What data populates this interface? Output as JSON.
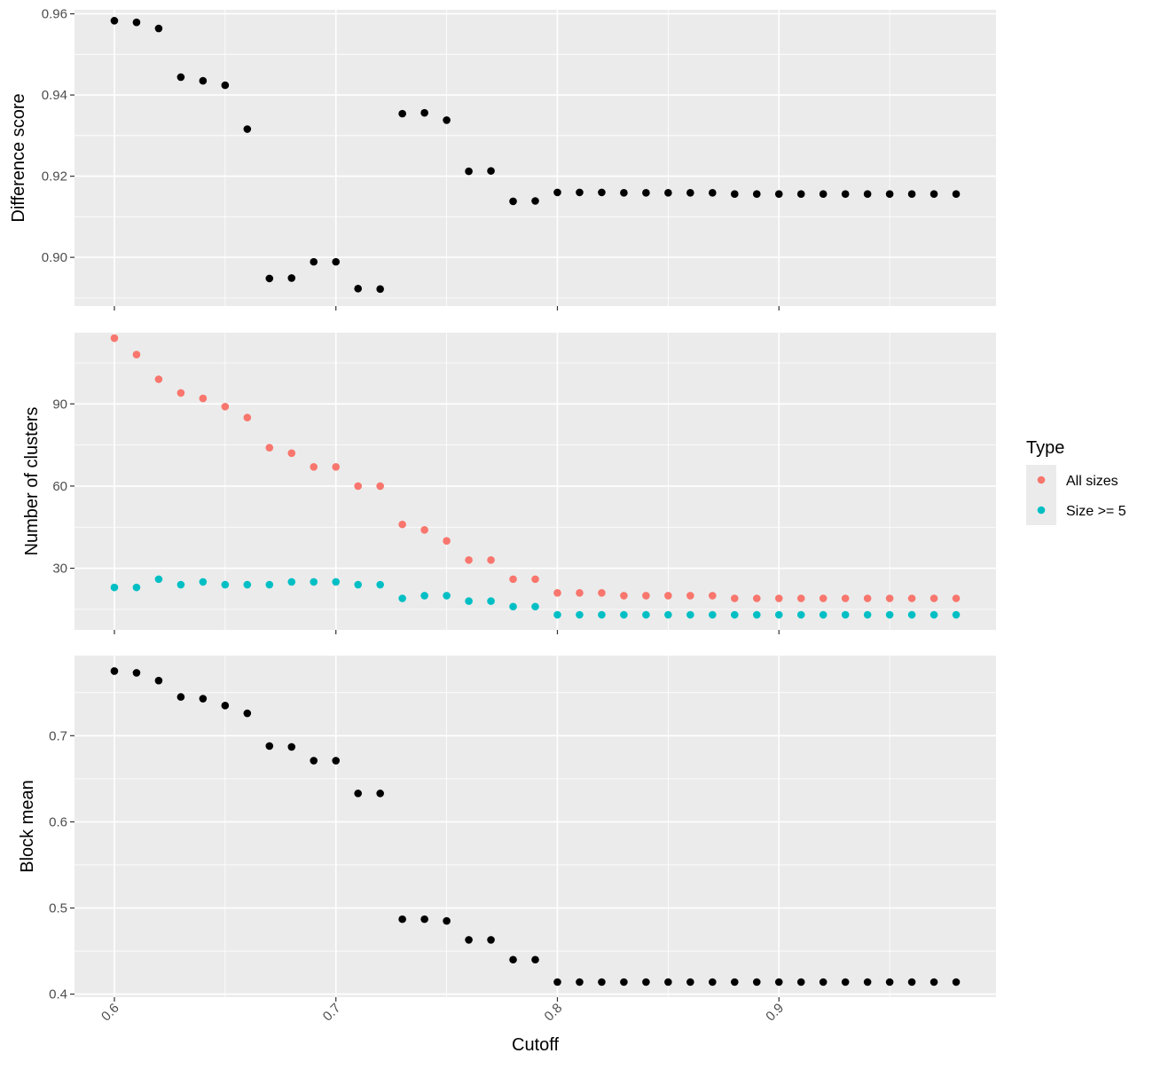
{
  "chart_data": {
    "type": "scatter",
    "x_label": "Cutoff",
    "x_range": [
      0.582,
      0.998
    ],
    "x_ticks": [
      0.6,
      0.7,
      0.8,
      0.9
    ],
    "x_tick_labels": [
      "0.6",
      "0.7",
      "0.8",
      "0.9"
    ],
    "x": [
      0.6,
      0.61,
      0.62,
      0.63,
      0.64,
      0.65,
      0.66,
      0.67,
      0.68,
      0.69,
      0.7,
      0.71,
      0.72,
      0.73,
      0.74,
      0.75,
      0.76,
      0.77,
      0.78,
      0.79,
      0.8,
      0.81,
      0.82,
      0.83,
      0.84,
      0.85,
      0.86,
      0.87,
      0.88,
      0.89,
      0.9,
      0.91,
      0.92,
      0.93,
      0.94,
      0.95,
      0.96,
      0.97,
      0.98
    ],
    "grid": true,
    "legend": {
      "title": "Type",
      "position": "right",
      "entries": [
        {
          "label": "All sizes",
          "color": "#F8766D"
        },
        {
          "label": "Size >= 5",
          "color": "#00BFC4"
        }
      ]
    },
    "panels": [
      {
        "ylabel": "Difference score",
        "ylim": [
          0.888,
          0.961
        ],
        "y_ticks": [
          0.9,
          0.92,
          0.94,
          0.96
        ],
        "y_tick_labels": [
          "0.90",
          "0.92",
          "0.94",
          "0.96"
        ],
        "series": [
          {
            "color": "#000000",
            "values": [
              0.9583,
              0.9579,
              0.9564,
              0.9444,
              0.9435,
              0.9424,
              0.9316,
              0.8948,
              0.8949,
              0.8989,
              0.8989,
              0.8923,
              0.8922,
              0.9354,
              0.9356,
              0.9338,
              0.9212,
              0.9213,
              0.9138,
              0.9139,
              0.916,
              0.916,
              0.916,
              0.9159,
              0.9159,
              0.9159,
              0.9159,
              0.9159,
              0.9156,
              0.9156,
              0.9156,
              0.9156,
              0.9156,
              0.9156,
              0.9156,
              0.9156,
              0.9156,
              0.9156,
              0.9156
            ]
          }
        ]
      },
      {
        "ylabel": "Number of clusters",
        "ylim": [
          7.5,
          116
        ],
        "y_ticks": [
          30,
          60,
          90
        ],
        "y_tick_labels": [
          "30",
          "60",
          "90"
        ],
        "series": [
          {
            "name": "All sizes",
            "color": "#F8766D",
            "values": [
              114,
              108,
              99,
              94,
              92,
              89,
              85,
              74,
              72,
              67,
              67,
              60,
              60,
              46,
              44,
              40,
              33,
              33,
              26,
              26,
              21,
              21,
              21,
              20,
              20,
              20,
              20,
              20,
              19,
              19,
              19,
              19,
              19,
              19,
              19,
              19,
              19,
              19,
              19
            ]
          },
          {
            "name": "Size >= 5",
            "color": "#00BFC4",
            "values": [
              23,
              23,
              26,
              24,
              25,
              24,
              24,
              24,
              25,
              25,
              25,
              24,
              24,
              19,
              20,
              20,
              18,
              18,
              16,
              16,
              13,
              13,
              13,
              13,
              13,
              13,
              13,
              13,
              13,
              13,
              13,
              13,
              13,
              13,
              13,
              13,
              13,
              13,
              13
            ]
          }
        ]
      },
      {
        "ylabel": "Block mean",
        "ylim": [
          0.3965,
          0.793
        ],
        "y_ticks": [
          0.4,
          0.5,
          0.6,
          0.7
        ],
        "y_tick_labels": [
          "0.4",
          "0.5",
          "0.6",
          "0.7"
        ],
        "series": [
          {
            "color": "#000000",
            "values": [
              0.775,
              0.773,
              0.764,
              0.745,
              0.743,
              0.735,
              0.726,
              0.688,
              0.687,
              0.671,
              0.671,
              0.633,
              0.633,
              0.487,
              0.487,
              0.485,
              0.463,
              0.463,
              0.44,
              0.44,
              0.414,
              0.414,
              0.414,
              0.414,
              0.414,
              0.414,
              0.414,
              0.414,
              0.414,
              0.414,
              0.414,
              0.414,
              0.414,
              0.414,
              0.414,
              0.414,
              0.414,
              0.414,
              0.414
            ]
          }
        ]
      }
    ]
  }
}
